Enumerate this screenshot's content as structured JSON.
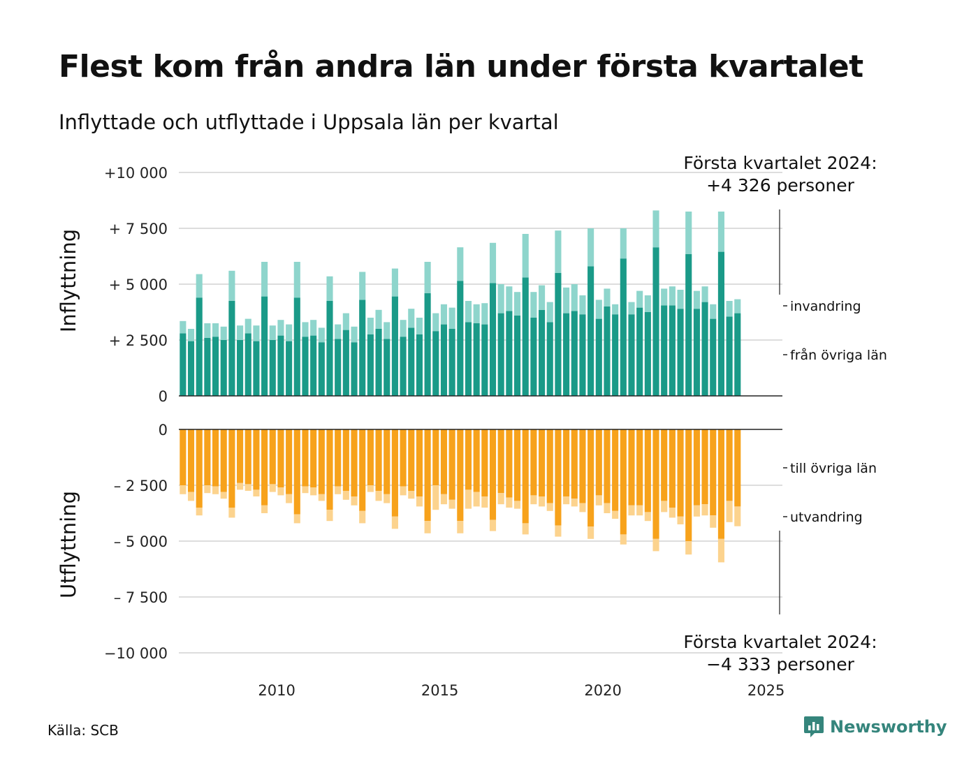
{
  "header": {
    "title": "Flest kom från andra län under första kvartalet",
    "subtitle": "Inflyttade och utflyttade i Uppsala län per kvartal"
  },
  "footer": {
    "source": "Källa: SCB",
    "brand": "Newsworthy"
  },
  "colors": {
    "in_domestic": "#1a9a88",
    "in_immigration": "#8ed5cc",
    "out_domestic": "#f7a21b",
    "out_emigration": "#fcd38e",
    "grid": "#dddddd",
    "brand": "#35857c"
  },
  "icons": {
    "brand": "newsworthy-logo-icon"
  },
  "chart_data": {
    "type": "bar",
    "stacked": true,
    "diverging": true,
    "x_start": "2007 Q1",
    "x_end": "2024 Q1",
    "x_ticks": [
      "2010",
      "2015",
      "2020",
      "2025"
    ],
    "x_tick_values": [
      2010,
      2015,
      2020,
      2025
    ],
    "x_range": [
      2007,
      2025.5
    ],
    "panels": [
      {
        "id": "in",
        "label": "Inflyttning",
        "ylim": [
          0,
          10000
        ],
        "y_tick_values": [
          0,
          2500,
          5000,
          7500,
          10000
        ],
        "y_tick_labels": [
          "0",
          "+ 2 500",
          "+ 5 000",
          "+ 7 500",
          "+10 000"
        ],
        "annotation": [
          "Första kvartalet 2024:",
          "+4 326 personer"
        ],
        "series": [
          {
            "name": "från övriga län",
            "values": [
              2800,
              2450,
              4400,
              2600,
              2650,
              2500,
              4250,
              2500,
              2800,
              2450,
              4450,
              2500,
              2700,
              2450,
              4400,
              2650,
              2700,
              2400,
              4250,
              2550,
              2950,
              2400,
              4300,
              2750,
              3000,
              2550,
              4450,
              2650,
              3050,
              2750,
              4600,
              2900,
              3200,
              3000,
              5150,
              3300,
              3250,
              3200,
              5050,
              3700,
              3800,
              3600,
              5300,
              3500,
              3850,
              3300,
              5500,
              3700,
              3800,
              3650,
              5800,
              3450,
              4000,
              3650,
              6150,
              3650,
              3950,
              3750,
              6650,
              4050,
              4050,
              3900,
              6350,
              3900,
              4200,
              3450,
              6450,
              3550,
              3700
            ]
          },
          {
            "name": "invandring",
            "values": [
              550,
              550,
              1050,
              650,
              600,
              600,
              1350,
              650,
              650,
              700,
              1550,
              650,
              700,
              750,
              1600,
              650,
              700,
              650,
              1100,
              650,
              750,
              700,
              1250,
              750,
              850,
              750,
              1250,
              750,
              850,
              750,
              1400,
              800,
              900,
              950,
              1500,
              950,
              850,
              950,
              1800,
              1300,
              1100,
              1050,
              1950,
              1150,
              1100,
              900,
              1900,
              1150,
              1200,
              850,
              1700,
              850,
              800,
              450,
              1350,
              550,
              750,
              750,
              1650,
              750,
              850,
              850,
              1900,
              800,
              700,
              650,
              1800,
              700,
              626
            ]
          }
        ]
      },
      {
        "id": "out",
        "label": "Utflyttning",
        "ylim": [
          -10000,
          0
        ],
        "y_tick_values": [
          0,
          -2500,
          -5000,
          -7500,
          -10000
        ],
        "y_tick_labels": [
          "0",
          "– 2 500",
          "– 5 000",
          "– 7 500",
          "−10 000"
        ],
        "annotation": [
          "Första kvartalet 2024:",
          "−4 333 personer"
        ],
        "series": [
          {
            "name": "till övriga län",
            "values": [
              -2500,
              -2800,
              -3500,
              -2500,
              -2550,
              -2800,
              -3500,
              -2400,
              -2450,
              -2700,
              -3400,
              -2450,
              -2600,
              -2900,
              -3800,
              -2550,
              -2600,
              -2900,
              -3600,
              -2550,
              -2750,
              -3000,
              -3650,
              -2500,
              -2750,
              -2900,
              -3900,
              -2550,
              -2750,
              -3000,
              -4100,
              -2500,
              -2900,
              -3150,
              -4100,
              -2700,
              -2800,
              -3000,
              -4050,
              -2850,
              -3050,
              -3200,
              -4200,
              -2950,
              -3000,
              -3300,
              -4300,
              -3000,
              -3100,
              -3300,
              -4350,
              -2950,
              -3300,
              -3650,
              -4700,
              -3400,
              -3400,
              -3700,
              -4900,
              -3200,
              -3500,
              -3900,
              -5000,
              -3400,
              -3350,
              -3850,
              -4900,
              -3200,
              -3450
            ]
          },
          {
            "name": "utvandring",
            "values": [
              -400,
              -400,
              -350,
              -350,
              -350,
              -300,
              -450,
              -300,
              -300,
              -300,
              -350,
              -350,
              -350,
              -400,
              -400,
              -300,
              -350,
              -300,
              -500,
              -350,
              -400,
              -400,
              -550,
              -300,
              -450,
              -400,
              -550,
              -400,
              -350,
              -450,
              -550,
              -1100,
              -450,
              -400,
              -550,
              -850,
              -650,
              -500,
              -500,
              -500,
              -450,
              -350,
              -500,
              -400,
              -450,
              -350,
              -500,
              -350,
              -350,
              -400,
              -550,
              -450,
              -450,
              -350,
              -450,
              -450,
              -450,
              -400,
              -550,
              -500,
              -450,
              -350,
              -600,
              -500,
              -500,
              -550,
              -1050,
              -950,
              -883
            ]
          }
        ]
      }
    ]
  }
}
